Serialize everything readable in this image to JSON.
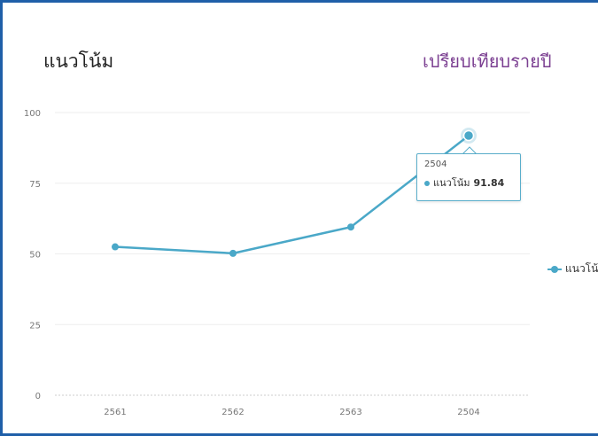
{
  "header": {
    "title": "แนวโน้ม",
    "subtitle": "เปรียบเทียบรายปี"
  },
  "chart_data": {
    "type": "line",
    "categories": [
      "2561",
      "2562",
      "2563",
      "2504"
    ],
    "series": [
      {
        "name": "แนวโน้ม",
        "values": [
          52.5,
          50.2,
          59.5,
          91.84
        ]
      }
    ],
    "ylim": [
      0,
      100
    ],
    "yticks": [
      0,
      25,
      50,
      75,
      100
    ],
    "grid": true,
    "legend": "right",
    "color": "#4aa8c8",
    "tooltip": {
      "x_label": "2504",
      "series_name": "แนวโน้ม",
      "value": "91.84"
    }
  }
}
